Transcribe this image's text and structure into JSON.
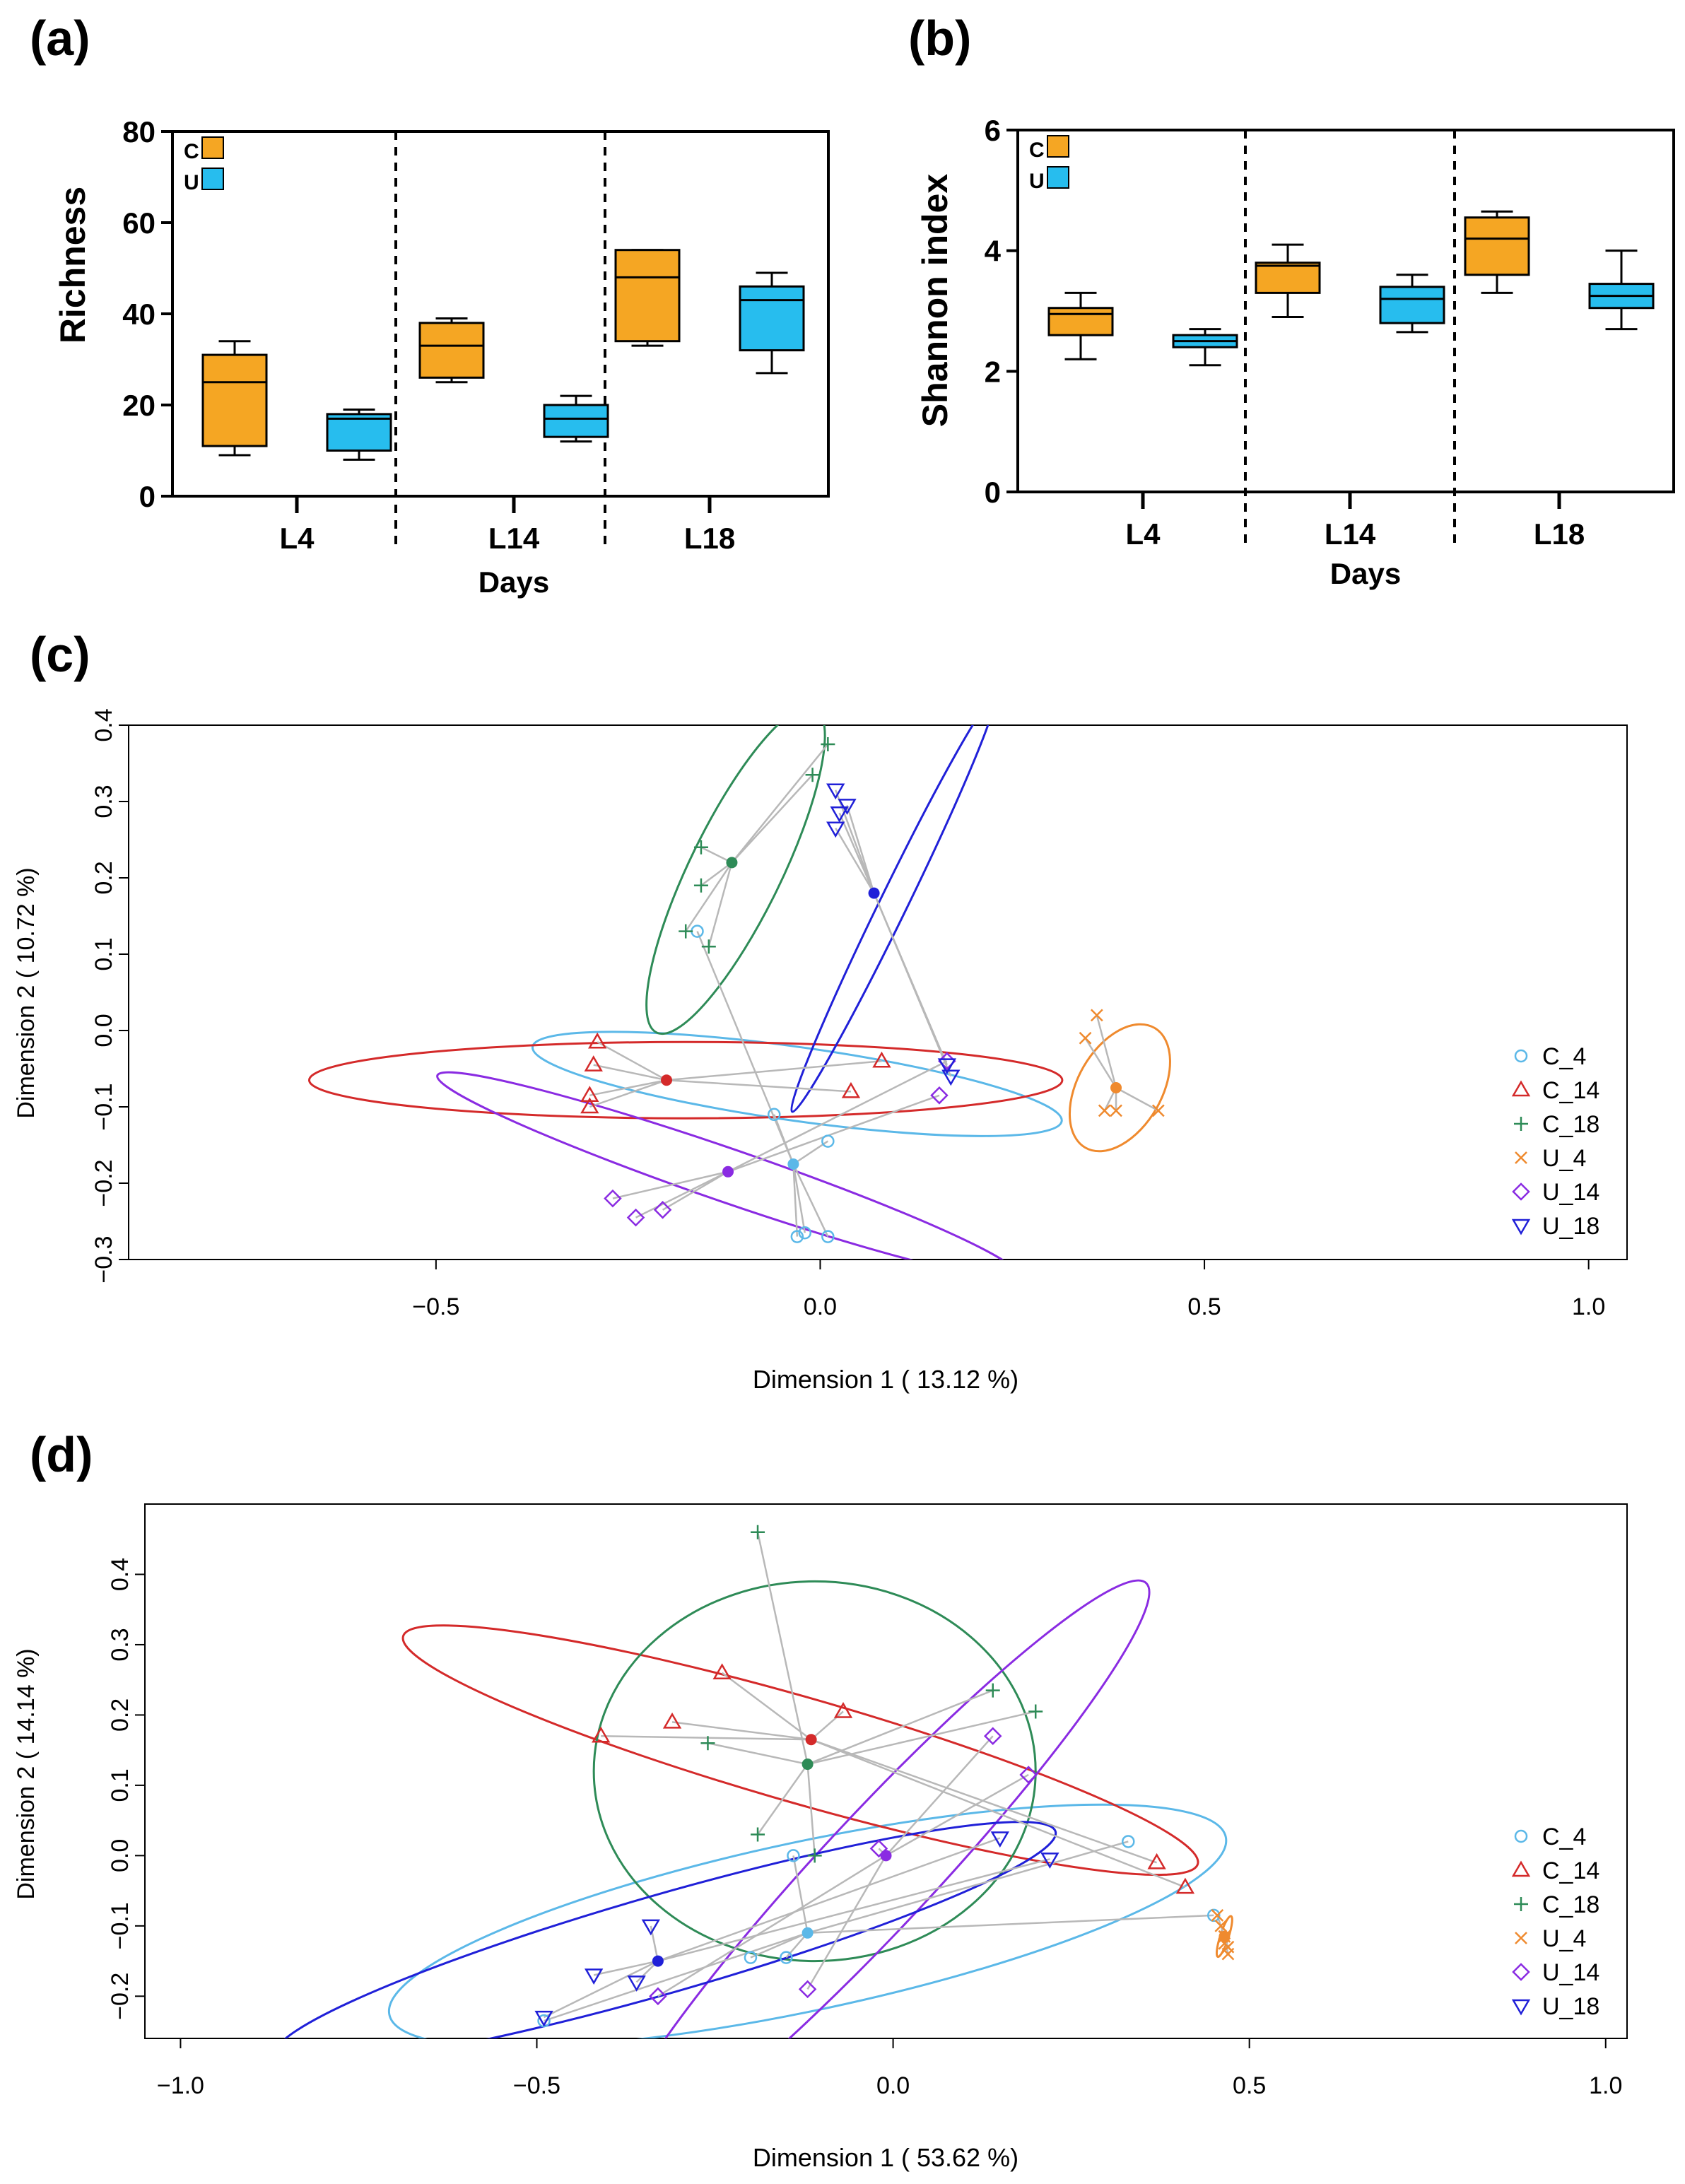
{
  "colors": {
    "C": "#f5a623",
    "U": "#27bdee",
    "C_4": "#5bb8e8",
    "C_14": "#d42a2a",
    "C_18": "#2e8b57",
    "U_4": "#ef8a2e",
    "U_14": "#8a2be2",
    "U_18": "#2020d8",
    "link": "#b8b8b8"
  },
  "chart_data": [
    {
      "panel": "(a)",
      "type": "box",
      "xlabel": "Days",
      "ylabel": "Richness",
      "ylim": [
        0,
        80
      ],
      "yticks": [
        "0",
        "20",
        "40",
        "60",
        "80"
      ],
      "groups": [
        "L4",
        "L14",
        "L18"
      ],
      "legend": [
        "C",
        "U"
      ],
      "series": [
        {
          "name": "C",
          "boxes": [
            {
              "group": "L4",
              "min": 9,
              "q1": 11,
              "median": 25,
              "q3": 31,
              "max": 34
            },
            {
              "group": "L14",
              "min": 25,
              "q1": 26,
              "median": 33,
              "q3": 38,
              "max": 39
            },
            {
              "group": "L18",
              "min": 33,
              "q1": 34,
              "median": 48,
              "q3": 54,
              "max": 54
            }
          ]
        },
        {
          "name": "U",
          "boxes": [
            {
              "group": "L4",
              "min": 8,
              "q1": 10,
              "median": 17,
              "q3": 18,
              "max": 19
            },
            {
              "group": "L14",
              "min": 12,
              "q1": 13,
              "median": 17,
              "q3": 20,
              "max": 22
            },
            {
              "group": "L18",
              "min": 27,
              "q1": 32,
              "median": 43,
              "q3": 46,
              "max": 49
            }
          ]
        }
      ]
    },
    {
      "panel": "(b)",
      "type": "box",
      "xlabel": "Days",
      "ylabel": "Shannon index",
      "ylim": [
        0,
        6
      ],
      "yticks": [
        "0",
        "2",
        "4",
        "6"
      ],
      "groups": [
        "L4",
        "L14",
        "L18"
      ],
      "legend": [
        "C",
        "U"
      ],
      "series": [
        {
          "name": "C",
          "boxes": [
            {
              "group": "L4",
              "min": 2.2,
              "q1": 2.6,
              "median": 2.95,
              "q3": 3.05,
              "max": 3.3
            },
            {
              "group": "L14",
              "min": 2.9,
              "q1": 3.3,
              "median": 3.75,
              "q3": 3.8,
              "max": 4.1
            },
            {
              "group": "L18",
              "min": 3.3,
              "q1": 3.6,
              "median": 4.2,
              "q3": 4.55,
              "max": 4.65
            }
          ]
        },
        {
          "name": "U",
          "boxes": [
            {
              "group": "L4",
              "min": 2.1,
              "q1": 2.4,
              "median": 2.5,
              "q3": 2.6,
              "max": 2.7
            },
            {
              "group": "L14",
              "min": 2.65,
              "q1": 2.8,
              "median": 3.2,
              "q3": 3.4,
              "max": 3.6
            },
            {
              "group": "L18",
              "min": 2.7,
              "q1": 3.05,
              "median": 3.25,
              "q3": 3.45,
              "max": 4.0
            }
          ]
        }
      ]
    },
    {
      "panel": "(c)",
      "type": "scatter",
      "xlabel": "Dimension 1 ( 13.12 %)",
      "ylabel": "Dimension 2 ( 10.72 %)",
      "xlim": [
        -0.9,
        1.05
      ],
      "ylim": [
        -0.3,
        0.4
      ],
      "xticks": [
        -0.5,
        0.0,
        0.5,
        1.0
      ],
      "xtick_labels": [
        "−0.5",
        "0.0",
        "0.5",
        "1.0"
      ],
      "yticks": [
        -0.3,
        -0.2,
        -0.1,
        0.0,
        0.1,
        0.2,
        0.3,
        0.4
      ],
      "ytick_labels": [
        "−0.3",
        "−0.2",
        "−0.1",
        "0.0",
        "0.1",
        "0.2",
        "0.3",
        "0.4"
      ],
      "legend_position": "right",
      "groups": [
        {
          "name": "C_4",
          "marker": "circle",
          "centroid": [
            -0.035,
            -0.175
          ],
          "ellipse": {
            "center": [
              -0.03,
              -0.07
            ],
            "rx": 0.048,
            "ry": 0.35,
            "angle": -82
          },
          "points": [
            [
              -0.16,
              0.13
            ],
            [
              -0.06,
              -0.11
            ],
            [
              0.01,
              -0.145
            ],
            [
              -0.03,
              -0.27
            ],
            [
              -0.02,
              -0.265
            ],
            [
              0.01,
              -0.27
            ]
          ]
        },
        {
          "name": "C_14",
          "marker": "triangle-up",
          "centroid": [
            -0.2,
            -0.065
          ],
          "ellipse": {
            "center": [
              -0.175,
              -0.065
            ],
            "rx": 0.49,
            "ry": 0.05,
            "angle": 0
          },
          "points": [
            [
              -0.29,
              -0.015
            ],
            [
              -0.295,
              -0.045
            ],
            [
              -0.3,
              -0.085
            ],
            [
              -0.3,
              -0.1
            ],
            [
              0.08,
              -0.04
            ],
            [
              0.04,
              -0.08
            ]
          ]
        },
        {
          "name": "C_18",
          "marker": "plus",
          "centroid": [
            -0.115,
            0.22
          ],
          "ellipse": {
            "center": [
              -0.11,
              0.21
            ],
            "rx": 0.235,
            "ry": 0.06,
            "angle": -64
          },
          "points": [
            [
              -0.155,
              0.24
            ],
            [
              -0.155,
              0.19
            ],
            [
              -0.175,
              0.13
            ],
            [
              -0.145,
              0.11
            ],
            [
              -0.01,
              0.335
            ],
            [
              0.01,
              0.375
            ]
          ]
        },
        {
          "name": "U_4",
          "marker": "cross",
          "centroid": [
            0.385,
            -0.075
          ],
          "ellipse": {
            "center": [
              0.39,
              -0.075
            ],
            "rx": 0.09,
            "ry": 0.055,
            "angle": -60
          },
          "points": [
            [
              0.345,
              -0.01
            ],
            [
              0.36,
              0.02
            ],
            [
              0.37,
              -0.105
            ],
            [
              0.385,
              -0.105
            ],
            [
              0.44,
              -0.105
            ]
          ]
        },
        {
          "name": "U_14",
          "marker": "diamond",
          "centroid": [
            -0.12,
            -0.185
          ],
          "ellipse": {
            "center": [
              -0.12,
              -0.19
            ],
            "rx": 0.4,
            "ry": 0.035,
            "angle": 19
          },
          "points": [
            [
              -0.27,
              -0.22
            ],
            [
              -0.24,
              -0.245
            ],
            [
              -0.205,
              -0.235
            ],
            [
              0.155,
              -0.085
            ],
            [
              0.165,
              -0.04
            ]
          ]
        },
        {
          "name": "U_18",
          "marker": "triangle-down",
          "centroid": [
            0.07,
            0.18
          ],
          "ellipse": {
            "center": [
              0.095,
              0.165
            ],
            "rx": 0.3,
            "ry": 0.018,
            "angle": -64
          },
          "points": [
            [
              0.02,
              0.315
            ],
            [
              0.035,
              0.295
            ],
            [
              0.025,
              0.285
            ],
            [
              0.02,
              0.265
            ],
            [
              0.165,
              -0.045
            ],
            [
              0.17,
              -0.06
            ]
          ]
        }
      ]
    },
    {
      "panel": "(d)",
      "type": "scatter",
      "xlabel": "Dimension 1 ( 53.62 %)",
      "ylabel": "Dimension 2 ( 14.14 %)",
      "xlim": [
        -1.05,
        1.03
      ],
      "ylim": [
        -0.26,
        0.5
      ],
      "xticks": [
        -1.0,
        -0.5,
        0.0,
        0.5,
        1.0
      ],
      "xtick_labels": [
        "−1.0",
        "−0.5",
        "0.0",
        "0.5",
        "1.0"
      ],
      "yticks": [
        -0.2,
        -0.1,
        0.0,
        0.1,
        0.2,
        0.3,
        0.4
      ],
      "ytick_labels": [
        "−0.2",
        "−0.1",
        "0.0",
        "0.1",
        "0.2",
        "0.3",
        "0.4"
      ],
      "legend_position": "right",
      "groups": [
        {
          "name": "C_4",
          "marker": "circle",
          "centroid": [
            -0.12,
            -0.11
          ],
          "ellipse": {
            "center": [
              -0.12,
              -0.1
            ],
            "rx": 0.6,
            "ry": 0.12,
            "angle": -12
          },
          "points": [
            [
              -0.49,
              -0.235
            ],
            [
              -0.2,
              -0.145
            ],
            [
              -0.15,
              -0.145
            ],
            [
              -0.14,
              0.0
            ],
            [
              0.33,
              0.02
            ],
            [
              0.45,
              -0.085
            ]
          ]
        },
        {
          "name": "C_14",
          "marker": "triangle-up",
          "centroid": [
            -0.115,
            0.165
          ],
          "ellipse": {
            "center": [
              -0.13,
              0.15
            ],
            "rx": 0.58,
            "ry": 0.075,
            "angle": 16
          },
          "points": [
            [
              -0.41,
              0.17
            ],
            [
              -0.31,
              0.19
            ],
            [
              -0.24,
              0.26
            ],
            [
              -0.07,
              0.205
            ],
            [
              0.37,
              -0.01
            ],
            [
              0.41,
              -0.045
            ]
          ]
        },
        {
          "name": "C_18",
          "marker": "plus",
          "centroid": [
            -0.12,
            0.13
          ],
          "ellipse": {
            "center": [
              -0.11,
              0.12
            ],
            "rx": 0.31,
            "ry": 0.27,
            "angle": 0
          },
          "points": [
            [
              -0.19,
              0.46
            ],
            [
              -0.26,
              0.16
            ],
            [
              -0.19,
              0.03
            ],
            [
              -0.11,
              0.0
            ],
            [
              0.14,
              0.235
            ],
            [
              0.2,
              0.205
            ]
          ]
        },
        {
          "name": "U_4",
          "marker": "cross",
          "centroid": [
            0.465,
            -0.115
          ],
          "ellipse": {
            "center": [
              0.465,
              -0.115
            ],
            "rx": 0.03,
            "ry": 0.006,
            "angle": -72
          },
          "points": [
            [
              0.455,
              -0.085
            ],
            [
              0.46,
              -0.1
            ],
            [
              0.465,
              -0.115
            ],
            [
              0.465,
              -0.125
            ],
            [
              0.47,
              -0.13
            ],
            [
              0.47,
              -0.14
            ]
          ]
        },
        {
          "name": "U_14",
          "marker": "diamond",
          "centroid": [
            -0.01,
            0.0
          ],
          "ellipse": {
            "center": [
              -0.02,
              -0.02
            ],
            "rx": 0.55,
            "ry": 0.08,
            "angle": -47
          },
          "points": [
            [
              -0.33,
              -0.2
            ],
            [
              -0.12,
              -0.19
            ],
            [
              -0.02,
              0.01
            ],
            [
              0.14,
              0.17
            ],
            [
              0.19,
              0.115
            ]
          ]
        },
        {
          "name": "U_18",
          "marker": "triangle-down",
          "centroid": [
            -0.33,
            -0.15
          ],
          "ellipse": {
            "center": [
              -0.32,
              -0.125
            ],
            "rx": 0.57,
            "ry": 0.07,
            "angle": -16
          },
          "points": [
            [
              -0.49,
              -0.23
            ],
            [
              -0.42,
              -0.17
            ],
            [
              -0.36,
              -0.18
            ],
            [
              -0.34,
              -0.1
            ],
            [
              0.15,
              0.025
            ],
            [
              0.22,
              -0.005
            ]
          ]
        }
      ]
    }
  ]
}
